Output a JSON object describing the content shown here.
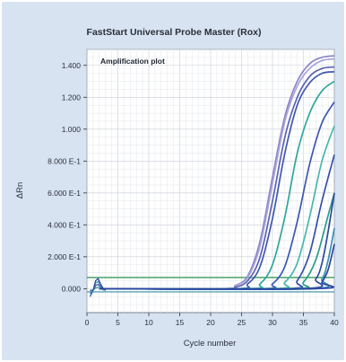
{
  "chart_data": {
    "type": "line",
    "title": "FastStart Universal Probe Master (Rox)",
    "plot_label": "Amplification plot",
    "xlabel": "Cycle number",
    "ylabel": "ΔRn",
    "xlim": [
      0,
      40
    ],
    "ylim": [
      -0.15,
      1.5
    ],
    "grid": true,
    "x_ticks": [
      0,
      5,
      10,
      15,
      20,
      25,
      30,
      35,
      40
    ],
    "x_tick_labels": [
      "0",
      "5",
      "10",
      "15",
      "20",
      "25",
      "30",
      "35",
      "40"
    ],
    "y_ticks": [
      0,
      0.2,
      0.4,
      0.6,
      0.8,
      1.0,
      1.2,
      1.4
    ],
    "y_tick_labels": [
      "0.000",
      "2.000 E-1",
      "4.000 E-1",
      "6.000 E-1",
      "8.000 E-1",
      "1.000",
      "1.200",
      "1.400"
    ],
    "threshold_lines": [
      {
        "y": 0.07,
        "color": "#3a9a5a"
      },
      {
        "y": -0.02,
        "color": "#5aa0b0"
      }
    ],
    "series": [
      {
        "color": "#8a84c8",
        "x": [
          2,
          22,
          24,
          26,
          28,
          30,
          32,
          34,
          36,
          38,
          40
        ],
        "y": [
          0,
          0,
          0.02,
          0.08,
          0.3,
          0.7,
          1.08,
          1.3,
          1.41,
          1.45,
          1.46
        ]
      },
      {
        "color": "#a7a3d8",
        "x": [
          2,
          22,
          24,
          26,
          28,
          30,
          32,
          34,
          36,
          38,
          40
        ],
        "y": [
          0,
          0,
          0.02,
          0.07,
          0.27,
          0.66,
          1.05,
          1.27,
          1.38,
          1.43,
          1.44
        ]
      },
      {
        "color": "#5c63b0",
        "x": [
          2,
          22,
          24,
          26,
          28,
          30,
          32,
          34,
          36,
          38,
          40
        ],
        "y": [
          0,
          0,
          0.01,
          0.05,
          0.2,
          0.55,
          0.95,
          1.2,
          1.33,
          1.38,
          1.39
        ]
      },
      {
        "color": "#3f58b0",
        "x": [
          2,
          24,
          26,
          28,
          30,
          32,
          34,
          36,
          38,
          40
        ],
        "y": [
          0,
          0,
          0.03,
          0.14,
          0.44,
          0.85,
          1.15,
          1.29,
          1.35,
          1.36
        ]
      },
      {
        "color": "#2fa79b",
        "x": [
          2,
          26,
          28,
          30,
          32,
          34,
          36,
          38,
          40
        ],
        "y": [
          0,
          0,
          0.03,
          0.15,
          0.45,
          0.85,
          1.1,
          1.24,
          1.3
        ]
      },
      {
        "color": "#3d56b0",
        "x": [
          2,
          28,
          30,
          32,
          34,
          36,
          38,
          40
        ],
        "y": [
          0,
          0,
          0.03,
          0.14,
          0.42,
          0.78,
          1.04,
          1.17
        ]
      },
      {
        "color": "#4bb5ae",
        "x": [
          2,
          30,
          32,
          34,
          36,
          38,
          40
        ],
        "y": [
          0,
          0,
          0.04,
          0.16,
          0.45,
          0.8,
          1.02
        ]
      },
      {
        "color": "#3350a8",
        "x": [
          2,
          32,
          34,
          36,
          38,
          40
        ],
        "y": [
          0,
          0,
          0.05,
          0.22,
          0.55,
          0.84
        ]
      },
      {
        "color": "#2a9d86",
        "x": [
          2,
          33,
          35,
          37,
          39,
          40
        ],
        "y": [
          0,
          0,
          0.04,
          0.18,
          0.46,
          0.6
        ]
      },
      {
        "color": "#2f4aa0",
        "x": [
          2,
          35,
          37,
          38,
          39,
          40
        ],
        "y": [
          0,
          0,
          0.06,
          0.16,
          0.36,
          0.6
        ]
      },
      {
        "color": "#3c8fb0",
        "x": [
          2,
          36,
          38,
          39,
          40
        ],
        "y": [
          0,
          0,
          0.06,
          0.18,
          0.38
        ]
      },
      {
        "color": "#2a44a0",
        "x": [
          2,
          37,
          38,
          39,
          40
        ],
        "y": [
          0,
          0,
          0.04,
          0.12,
          0.28
        ]
      }
    ]
  }
}
